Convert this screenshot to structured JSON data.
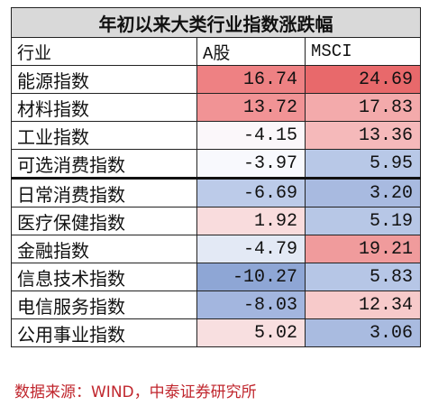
{
  "table": {
    "title": "年初以来大类行业指数涨跌幅",
    "header": [
      "行业",
      "A股",
      "MSCI"
    ],
    "rows": [
      [
        "能源指数",
        "16.74",
        "24.69"
      ],
      [
        "材料指数",
        "13.72",
        "17.83"
      ],
      [
        "工业指数",
        "-4.15",
        "13.36"
      ],
      [
        "可选消费指数",
        "-3.97",
        "5.95"
      ],
      [
        "日常消费指数",
        "-6.69",
        "3.20"
      ],
      [
        "医疗保健指数",
        "1.92",
        "5.19"
      ],
      [
        "金融指数",
        "-4.79",
        "19.21"
      ],
      [
        "信息技术指数",
        "-10.27",
        "5.83"
      ],
      [
        "电信服务指数",
        "-8.03",
        "12.34"
      ],
      [
        "公用事业指数",
        "5.02",
        "3.06"
      ]
    ],
    "cell_colors": [
      [
        "#ee8183",
        "#e8696b"
      ],
      [
        "#f19395",
        "#f3aaab"
      ],
      [
        "#fbf7fa",
        "#f5b9ba"
      ],
      [
        "#f8f9fd",
        "#b8c8e7"
      ],
      [
        "#bccbe9",
        "#a8bae0"
      ],
      [
        "#f9dcdd",
        "#b7c7e6"
      ],
      [
        "#e3e9f5",
        "#f09b9c"
      ],
      [
        "#8ea6d5",
        "#b6c6e6"
      ],
      [
        "#a3b6df",
        "#f7caca"
      ],
      [
        "#f8dfe0",
        "#a9bbe0"
      ]
    ],
    "source": "数据来源：WIND，中泰证券研究所"
  }
}
